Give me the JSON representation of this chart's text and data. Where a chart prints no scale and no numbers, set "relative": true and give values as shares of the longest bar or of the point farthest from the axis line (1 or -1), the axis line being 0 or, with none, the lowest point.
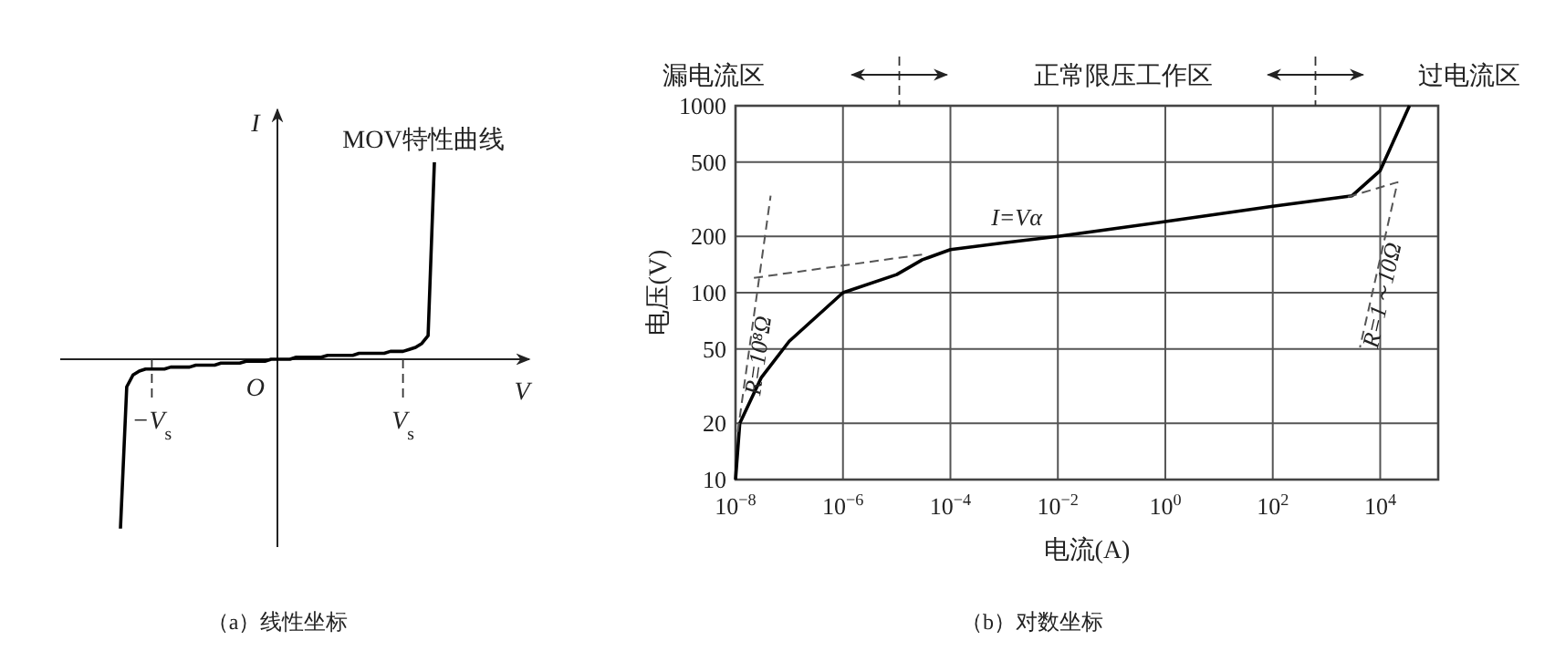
{
  "chart_data": [
    {
      "type": "line",
      "title": "（a）线性坐标",
      "xlabel": "V",
      "ylabel": "I",
      "relative": true,
      "categories": [
        null,
        null,
        null,
        null,
        null,
        "−V$_{s}$",
        null,
        null,
        null,
        null,
        null,
        null,
        null,
        null,
        null,
        null,
        null,
        null,
        null,
        null,
        null,
        null,
        null,
        null,
        null,
        null,
        null,
        null,
        null,
        null,
        null,
        null,
        null,
        null,
        null,
        null,
        null,
        null,
        null,
        null,
        null,
        null,
        null,
        null,
        null,
        "V$_{s}$",
        null,
        null,
        null,
        null,
        null
      ],
      "series": [
        {
          "color": "#000000",
          "values": [
            -0.86,
            -0.14,
            -0.08,
            -0.06,
            -0.05,
            -0.05,
            -0.05,
            -0.05,
            -0.04,
            -0.04,
            -0.04,
            -0.04,
            -0.03,
            -0.03,
            -0.03,
            -0.03,
            -0.02,
            -0.02,
            -0.02,
            -0.02,
            -0.01,
            -0.01,
            -0.01,
            -0.01,
            0,
            0,
            0,
            0,
            0.01,
            0.01,
            0.01,
            0.01,
            0.01,
            0.02,
            0.02,
            0.02,
            0.02,
            0.02,
            0.03,
            0.03,
            0.03,
            0.03,
            0.03,
            0.04,
            0.04,
            0.04,
            0.05,
            0.06,
            0.08,
            0.12,
            1.0
          ]
        }
      ],
      "annotations": [
        "MOV特性曲线",
        "O"
      ]
    },
    {
      "type": "line",
      "title": "（b）对数坐标",
      "xlabel": "电流(A)",
      "ylabel": "电压(V)",
      "log": "xy",
      "grid": true,
      "xlim": [
        1e-08,
        120000.0
      ],
      "ylim": [
        10,
        1000
      ],
      "xticks": [
        {
          "value": 1e-08,
          "label": "10$^{−8}$"
        },
        {
          "value": 1e-06,
          "label": "10$^{−6}$"
        },
        {
          "value": 0.0001,
          "label": "10$^{−4}$"
        },
        {
          "value": 0.01,
          "label": "10$^{−2}$"
        },
        {
          "value": 1,
          "label": "10$^{0}$"
        },
        {
          "value": 100,
          "label": "10$^{2}$"
        },
        {
          "value": 10000.0,
          "label": "10$^{4}$"
        }
      ],
      "yticks": [
        10,
        20,
        50,
        100,
        200,
        500,
        1000
      ],
      "series": [
        {
          "color": "#000000",
          "x": [
            1e-08,
            1.2e-08,
            3e-08,
            1e-07,
            1e-06,
            1e-05,
            3e-05,
            0.0001,
            0.001,
            0.01,
            1,
            100,
            3000.0,
            10000.0,
            20000.0,
            35000.0
          ],
          "values": [
            10,
            20,
            35,
            55,
            100,
            125,
            150,
            170,
            185,
            200,
            240,
            290,
            330,
            450,
            700,
            1000
          ]
        },
        {
          "color": "#555555",
          "line_style": "dashed",
          "x": [
            1.1e-08,
            4.5e-08
          ],
          "values": [
            18,
            330
          ]
        },
        {
          "color": "#555555",
          "line_style": "dashed",
          "x": [
            2.2e-08,
            3e-05
          ],
          "values": [
            120,
            160
          ]
        },
        {
          "color": "#555555",
          "line_style": "dashed",
          "x": [
            2500.0,
            21000.0,
            4200.0
          ],
          "values": [
            325,
            390,
            51
          ]
        }
      ],
      "annotations": [
        "漏电流区",
        "正常限压工作区",
        "过电流区",
        "I=Vα",
        "R=10⁸Ω",
        "R=1～10Ω"
      ]
    }
  ]
}
